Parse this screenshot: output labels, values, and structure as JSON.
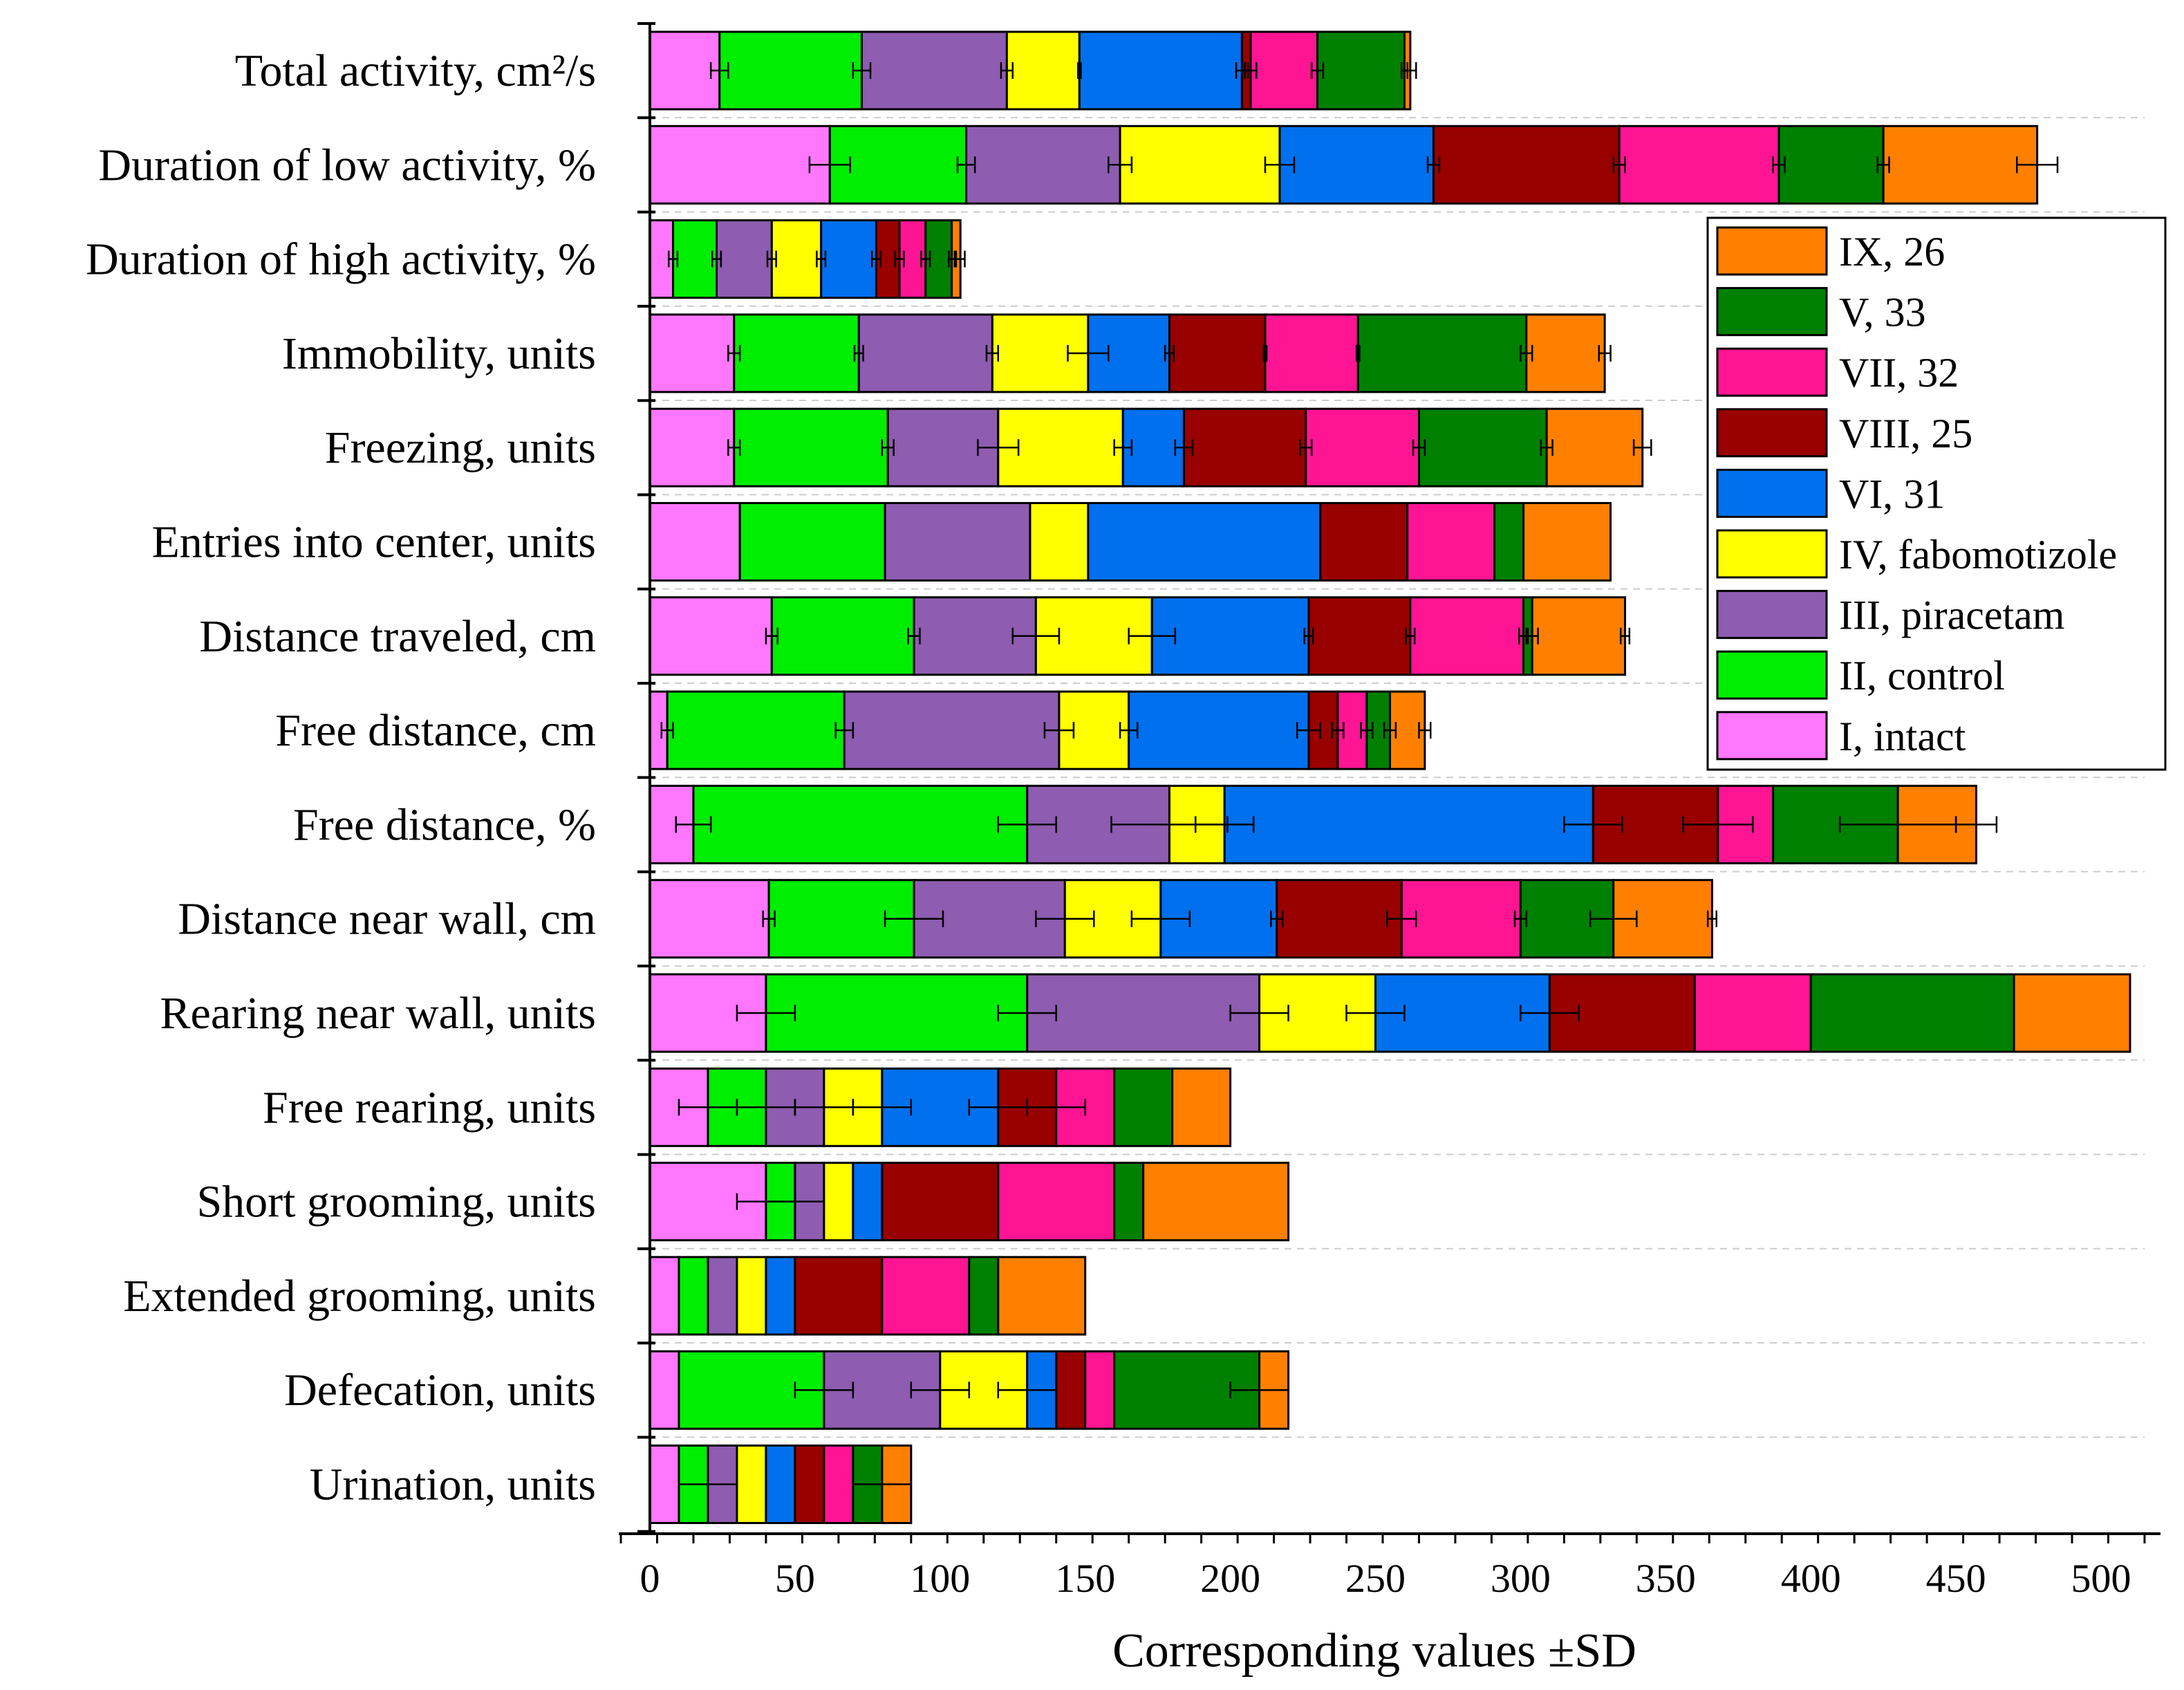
{
  "chart_data": {
    "type": "bar",
    "orientation": "horizontal",
    "stacked": true,
    "title": "",
    "xlabel": "Corresponding values ±SD",
    "ylabel": "",
    "xlim": [
      0,
      515
    ],
    "x_ticks": [
      0,
      50,
      100,
      150,
      200,
      250,
      300,
      350,
      400,
      450,
      500
    ],
    "grid": "horizontal dashed",
    "legend_position": "right",
    "categories": [
      "Total activity, cm²/s",
      "Duration of low activity, %",
      "Duration of high activity, %",
      "Immobility, units",
      "Freezing, units",
      "Entries into center, units",
      "Distance traveled, cm",
      "Free distance, cm",
      "Free distance, %",
      "Distance near wall, cm",
      "Rearing near wall, units",
      "Free rearing, units",
      "Short grooming, units",
      "Extended grooming, units",
      "Defecation, units",
      "Urination, units"
    ],
    "series": [
      {
        "name": "I, intact",
        "color": "#FF77FF",
        "values": [
          24,
          62,
          8,
          29,
          29,
          31,
          42,
          6,
          15,
          41,
          40,
          20,
          40,
          10,
          10,
          10
        ],
        "sd": [
          3,
          7,
          1.5,
          2,
          2,
          0,
          2,
          2,
          6,
          2,
          10,
          10,
          10,
          0,
          0,
          0
        ]
      },
      {
        "name": "II, control",
        "color": "#00EE00",
        "values": [
          49,
          47,
          15,
          43,
          53,
          50,
          49,
          61,
          115,
          50,
          90,
          20,
          10,
          10,
          50,
          10
        ],
        "sd": [
          3,
          3,
          1.5,
          1.5,
          2,
          0,
          2,
          3,
          10,
          10,
          10,
          10,
          10,
          0,
          10,
          10
        ]
      },
      {
        "name": "III, piracetam",
        "color": "#8E5CB0",
        "values": [
          50,
          53,
          19,
          46,
          38,
          50,
          42,
          74,
          49,
          52,
          80,
          20,
          10,
          10,
          40,
          10
        ],
        "sd": [
          2,
          4,
          1.5,
          2,
          7,
          0,
          8,
          5,
          20,
          10,
          10,
          10,
          0,
          0,
          10,
          0
        ]
      },
      {
        "name": "IV, fabomotizole",
        "color": "#FFFF00",
        "values": [
          25,
          55,
          17,
          33,
          43,
          20,
          40,
          24,
          19,
          33,
          40,
          20,
          10,
          10,
          30,
          10
        ],
        "sd": [
          0.5,
          5,
          1.5,
          7,
          3,
          0,
          8,
          3,
          10,
          10,
          10,
          10,
          0,
          0,
          10,
          0
        ]
      },
      {
        "name": "VI, 31",
        "color": "#0070EE",
        "values": [
          56,
          53,
          19,
          28,
          21,
          80,
          54,
          62,
          127,
          40,
          60,
          40,
          10,
          10,
          10,
          10
        ],
        "sd": [
          2,
          2,
          1.5,
          1.5,
          3,
          0,
          1.5,
          4,
          10,
          2,
          10,
          10,
          0,
          0,
          0,
          0
        ]
      },
      {
        "name": "VIII, 25",
        "color": "#990000",
        "values": [
          3,
          64,
          8,
          33,
          42,
          30,
          35,
          10,
          43,
          43,
          50,
          20,
          40,
          30,
          10,
          10
        ],
        "sd": [
          2,
          2,
          1.5,
          0.5,
          2,
          0,
          1.5,
          2,
          12,
          5,
          0,
          10,
          0,
          0,
          0,
          0
        ]
      },
      {
        "name": "VII, 32",
        "color": "#FF1493",
        "values": [
          23,
          55,
          9,
          32,
          39,
          30,
          39,
          10,
          19,
          41,
          40,
          20,
          40,
          30,
          10,
          10
        ],
        "sd": [
          2,
          2,
          1.5,
          0.5,
          2,
          0,
          1.5,
          2,
          0,
          2,
          0,
          0,
          0,
          0,
          0,
          0
        ]
      },
      {
        "name": "V, 33",
        "color": "#008000",
        "values": [
          30,
          36,
          9,
          58,
          44,
          10,
          3,
          8,
          43,
          32,
          70,
          20,
          10,
          10,
          50,
          10
        ],
        "sd": [
          1,
          2,
          1,
          2,
          2,
          0,
          2,
          2,
          20,
          8,
          0,
          0,
          0,
          0,
          10,
          10
        ]
      },
      {
        "name": "IX, 26",
        "color": "#FF8000",
        "values": [
          2,
          53,
          3,
          27,
          33,
          30,
          32,
          12,
          27,
          34,
          40,
          20,
          50,
          30,
          10,
          10
        ],
        "sd": [
          2,
          7,
          1.5,
          2,
          3,
          0,
          1.5,
          2,
          7,
          1.5,
          0,
          0,
          0,
          0,
          0,
          0
        ]
      }
    ],
    "legend_order": [
      "IX, 26",
      "V, 33",
      "VII, 32",
      "VIII, 25",
      "VI, 31",
      "IV, fabomotizole",
      "III, piracetam",
      "II, control",
      "I, intact"
    ]
  }
}
